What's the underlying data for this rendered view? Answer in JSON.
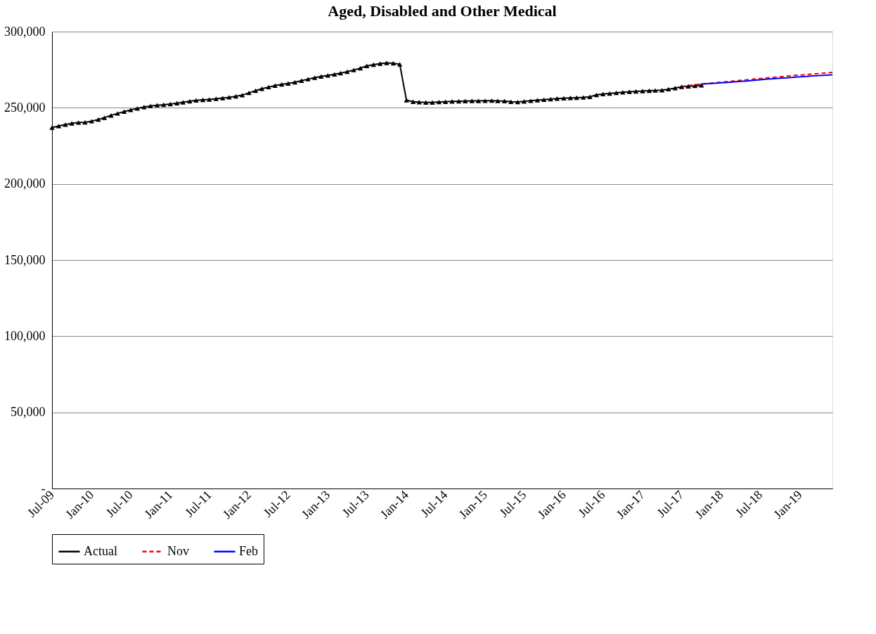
{
  "chart_data": {
    "type": "line",
    "title": "Aged, Disabled and Other Medical",
    "series": [
      {
        "name": "Actual",
        "color": "#000000",
        "marker": "triangle",
        "line_style": "solid",
        "x": [
          "2009-07",
          "2009-08",
          "2009-09",
          "2009-10",
          "2009-11",
          "2009-12",
          "2010-01",
          "2010-02",
          "2010-03",
          "2010-04",
          "2010-05",
          "2010-06",
          "2010-07",
          "2010-08",
          "2010-09",
          "2010-10",
          "2010-11",
          "2010-12",
          "2011-01",
          "2011-02",
          "2011-03",
          "2011-04",
          "2011-05",
          "2011-06",
          "2011-07",
          "2011-08",
          "2011-09",
          "2011-10",
          "2011-11",
          "2011-12",
          "2012-01",
          "2012-02",
          "2012-03",
          "2012-04",
          "2012-05",
          "2012-06",
          "2012-07",
          "2012-08",
          "2012-09",
          "2012-10",
          "2012-11",
          "2012-12",
          "2013-01",
          "2013-02",
          "2013-03",
          "2013-04",
          "2013-05",
          "2013-06",
          "2013-07",
          "2013-08",
          "2013-09",
          "2013-10",
          "2013-11",
          "2013-12",
          "2014-01",
          "2014-02",
          "2014-03",
          "2014-04",
          "2014-05",
          "2014-06",
          "2014-07",
          "2014-08",
          "2014-09",
          "2014-10",
          "2014-11",
          "2014-12",
          "2015-01",
          "2015-02",
          "2015-03",
          "2015-04",
          "2015-05",
          "2015-06",
          "2015-07",
          "2015-08",
          "2015-09",
          "2015-10",
          "2015-11",
          "2015-12",
          "2016-01",
          "2016-02",
          "2016-03",
          "2016-04",
          "2016-05",
          "2016-06",
          "2016-07",
          "2016-08",
          "2016-09",
          "2016-10",
          "2016-11",
          "2016-12",
          "2017-01",
          "2017-02",
          "2017-03",
          "2017-04",
          "2017-05",
          "2017-06",
          "2017-07",
          "2017-08",
          "2017-09",
          "2017-10"
        ],
        "values": [
          237000,
          238000,
          239000,
          239800,
          240300,
          240500,
          241200,
          242300,
          243500,
          245000,
          246300,
          247500,
          248600,
          249600,
          250500,
          251200,
          251700,
          252000,
          252500,
          253000,
          253600,
          254300,
          254900,
          255200,
          255500,
          255900,
          256400,
          256900,
          257500,
          258300,
          259800,
          261200,
          262500,
          263600,
          264600,
          265400,
          266000,
          266800,
          267800,
          268800,
          269800,
          270600,
          271300,
          272000,
          272800,
          273700,
          274800,
          276000,
          277500,
          278300,
          279000,
          279500,
          279200,
          278500,
          255000,
          254000,
          253700,
          253500,
          253500,
          253800,
          254000,
          254200,
          254300,
          254400,
          254500,
          254500,
          254600,
          254700,
          254500,
          254400,
          254000,
          253800,
          254200,
          254600,
          255000,
          255300,
          255700,
          256000,
          256300,
          256500,
          256600,
          256800,
          257200,
          258500,
          259000,
          259400,
          259800,
          260200,
          260500,
          260800,
          261000,
          261200,
          261400,
          261600,
          262200,
          263000,
          263800,
          264100,
          264400,
          264800
        ]
      },
      {
        "name": "Nov",
        "color": "#ff0000",
        "marker": "none",
        "line_style": "dashed",
        "x": [
          "2017-07",
          "2017-08",
          "2017-09",
          "2017-10",
          "2017-11",
          "2017-12",
          "2018-01",
          "2018-02",
          "2018-03",
          "2018-04",
          "2018-05",
          "2018-06",
          "2018-07",
          "2018-08",
          "2018-09",
          "2018-10",
          "2018-11",
          "2018-12",
          "2019-01",
          "2019-02",
          "2019-03",
          "2019-04",
          "2019-05",
          "2019-06"
        ],
        "values": [
          264000,
          264600,
          265100,
          265600,
          266000,
          266400,
          266800,
          267200,
          267600,
          268000,
          268400,
          268800,
          269200,
          269600,
          270000,
          270400,
          270800,
          271200,
          271500,
          271800,
          272200,
          272500,
          272900,
          273200
        ]
      },
      {
        "name": "Feb",
        "color": "#0000ff",
        "marker": "none",
        "line_style": "solid",
        "x": [
          "2017-10",
          "2017-11",
          "2017-12",
          "2018-01",
          "2018-02",
          "2018-03",
          "2018-04",
          "2018-05",
          "2018-06",
          "2018-07",
          "2018-08",
          "2018-09",
          "2018-10",
          "2018-11",
          "2018-12",
          "2019-01",
          "2019-02",
          "2019-03",
          "2019-04",
          "2019-05",
          "2019-06"
        ],
        "values": [
          265500,
          265800,
          266100,
          266400,
          266700,
          267000,
          267300,
          267600,
          268000,
          268400,
          268800,
          269100,
          269400,
          269700,
          270000,
          270300,
          270600,
          270900,
          271100,
          271400,
          271600
        ]
      }
    ],
    "xlim": [
      "2009-07",
      "2019-06"
    ],
    "xticks": [
      {
        "value": "2009-07",
        "label": "Jul-09"
      },
      {
        "value": "2010-01",
        "label": "Jan-10"
      },
      {
        "value": "2010-07",
        "label": "Jul-10"
      },
      {
        "value": "2011-01",
        "label": "Jan-11"
      },
      {
        "value": "2011-07",
        "label": "Jul-11"
      },
      {
        "value": "2012-01",
        "label": "Jan-12"
      },
      {
        "value": "2012-07",
        "label": "Jul-12"
      },
      {
        "value": "2013-01",
        "label": "Jan-13"
      },
      {
        "value": "2013-07",
        "label": "Jul-13"
      },
      {
        "value": "2014-01",
        "label": "Jan-14"
      },
      {
        "value": "2014-07",
        "label": "Jul-14"
      },
      {
        "value": "2015-01",
        "label": "Jan-15"
      },
      {
        "value": "2015-07",
        "label": "Jul-15"
      },
      {
        "value": "2016-01",
        "label": "Jan-16"
      },
      {
        "value": "2016-07",
        "label": "Jul-16"
      },
      {
        "value": "2017-01",
        "label": "Jan-17"
      },
      {
        "value": "2017-07",
        "label": "Jul-17"
      },
      {
        "value": "2018-01",
        "label": "Jan-18"
      },
      {
        "value": "2018-07",
        "label": "Jul-18"
      },
      {
        "value": "2019-01",
        "label": "Jan-19"
      }
    ],
    "ylim": [
      0,
      300000
    ],
    "yticks": [
      {
        "value": 0,
        "label": "-"
      },
      {
        "value": 50000,
        "label": "50,000"
      },
      {
        "value": 100000,
        "label": "100,000"
      },
      {
        "value": 150000,
        "label": "150,000"
      },
      {
        "value": 200000,
        "label": "200,000"
      },
      {
        "value": 250000,
        "label": "250,000"
      },
      {
        "value": 300000,
        "label": "300,000"
      }
    ],
    "grid": "y",
    "legend": "bottom"
  }
}
